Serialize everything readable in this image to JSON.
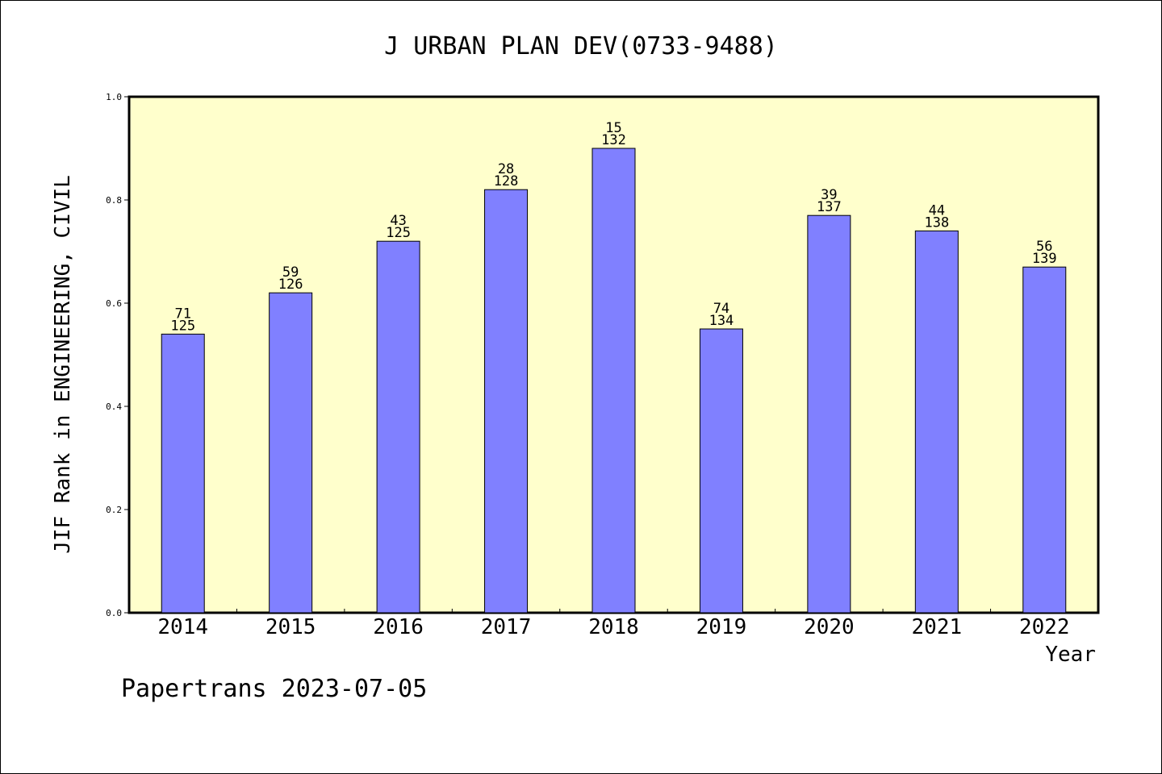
{
  "chart_data": {
    "type": "bar",
    "title": "J URBAN PLAN DEV(0733-9488)",
    "xlabel": "Year",
    "ylabel": "JIF Rank in ENGINEERING, CIVIL",
    "categories": [
      "2014",
      "2015",
      "2016",
      "2017",
      "2018",
      "2019",
      "2020",
      "2021",
      "2022"
    ],
    "values": [
      0.54,
      0.62,
      0.72,
      0.82,
      0.9,
      0.55,
      0.77,
      0.74,
      0.67
    ],
    "rank": [
      "71",
      "59",
      "43",
      "28",
      "15",
      "74",
      "39",
      "44",
      "56"
    ],
    "total": [
      "125",
      "126",
      "125",
      "128",
      "132",
      "134",
      "137",
      "138",
      "139"
    ],
    "ylim": [
      0,
      1.0
    ],
    "yticks": [
      "0.0",
      "0.2",
      "0.4",
      "0.6",
      "0.8",
      "1.0"
    ],
    "grid": false,
    "legend": "none",
    "colors": {
      "bar_fill": "#8080ff",
      "plot_background": "#ffffcc",
      "axis": "#000000"
    }
  },
  "footer": {
    "text": "Papertrans 2023-07-05"
  }
}
